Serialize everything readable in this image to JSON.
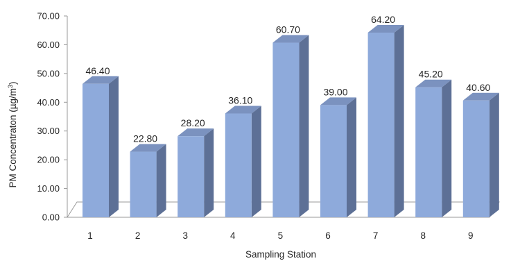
{
  "chart_data": {
    "type": "bar",
    "categories": [
      "1",
      "2",
      "3",
      "4",
      "5",
      "6",
      "7",
      "8",
      "9"
    ],
    "values": [
      46.4,
      22.8,
      28.2,
      36.1,
      60.7,
      39.0,
      64.2,
      45.2,
      40.6
    ],
    "value_labels": [
      "46.40",
      "22.80",
      "28.20",
      "36.10",
      "60.70",
      "39.00",
      "64.20",
      "45.20",
      "40.60"
    ],
    "y_ticks": [
      "0.00",
      "10.00",
      "20.00",
      "30.00",
      "40.00",
      "50.00",
      "60.00",
      "70.00"
    ],
    "xlabel": "Sampling Station",
    "ylabel_main": "PM Concentraton (µg/m",
    "ylabel_sup": "3",
    "ylabel_close": ")",
    "ylim": [
      0,
      70
    ],
    "grid": false,
    "legend": "none",
    "colors": {
      "bar_front": "#8eaadb",
      "bar_side": "#5d7096",
      "bar_top": "#7b92bf",
      "axis": "#9a9a9a"
    }
  }
}
